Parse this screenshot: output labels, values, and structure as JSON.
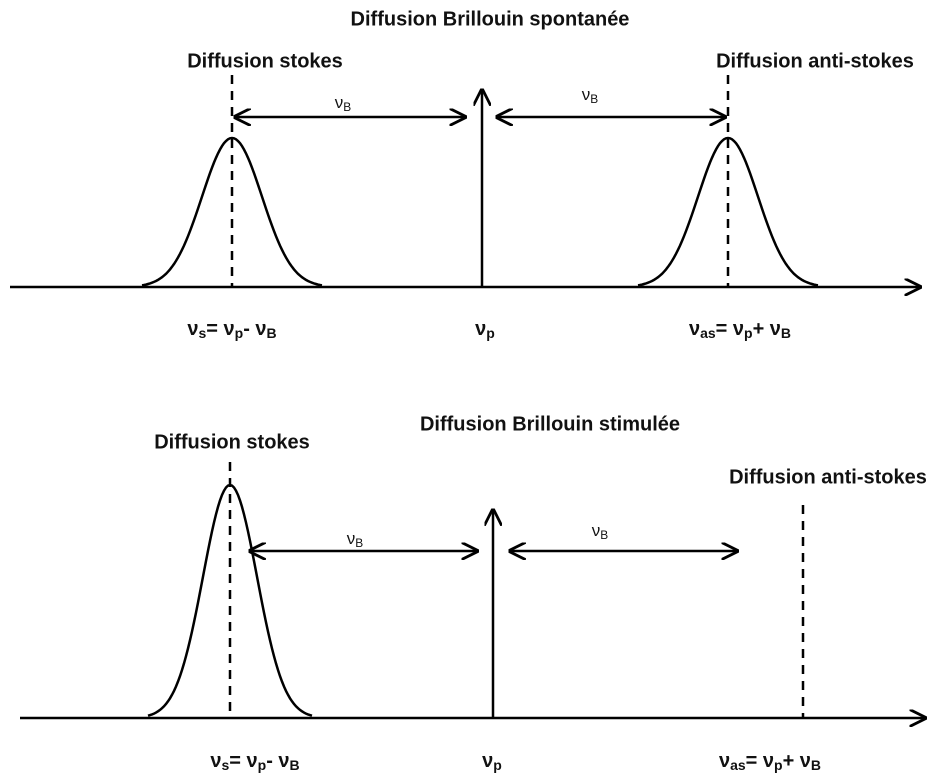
{
  "panels": [
    {
      "title": "Diffusion Brillouin spontanée",
      "stokes_label": "Diffusion stokes",
      "anti_stokes_label": "Diffusion anti-stokes",
      "shift_labels": [
        [
          {
            "text": "ν"
          },
          {
            "text": "B",
            "sub": true
          }
        ],
        [
          {
            "text": "ν"
          },
          {
            "text": "B",
            "sub": true
          }
        ]
      ],
      "axis_labels": [
        [
          {
            "text": "ν"
          },
          {
            "text": "s",
            "sub": true
          },
          {
            "text": "= ν"
          },
          {
            "text": "p",
            "sub": true
          },
          {
            "text": "- ν"
          },
          {
            "text": "B",
            "sub": true
          }
        ],
        [
          {
            "text": "ν"
          },
          {
            "text": "p",
            "sub": true
          }
        ],
        [
          {
            "text": "ν"
          },
          {
            "text": "as",
            "sub": true
          },
          {
            "text": "= ν"
          },
          {
            "text": "p",
            "sub": true
          },
          {
            "text": "+ ν"
          },
          {
            "text": "B",
            "sub": true
          }
        ]
      ]
    },
    {
      "title": "Diffusion Brillouin stimulée",
      "stokes_label": "Diffusion stokes",
      "anti_stokes_label": "Diffusion anti-stokes",
      "shift_labels": [
        [
          {
            "text": "ν"
          },
          {
            "text": "B",
            "sub": true
          }
        ],
        [
          {
            "text": "ν"
          },
          {
            "text": "B",
            "sub": true
          }
        ]
      ],
      "axis_labels": [
        [
          {
            "text": "ν"
          },
          {
            "text": "s",
            "sub": true
          },
          {
            "text": "= ν"
          },
          {
            "text": "p",
            "sub": true
          },
          {
            "text": "- ν"
          },
          {
            "text": "B",
            "sub": true
          }
        ],
        [
          {
            "text": "ν"
          },
          {
            "text": "p",
            "sub": true
          }
        ],
        [
          {
            "text": "ν"
          },
          {
            "text": "as",
            "sub": true
          },
          {
            "text": "= ν"
          },
          {
            "text": "p",
            "sub": true
          },
          {
            "text": "+ ν"
          },
          {
            "text": "B",
            "sub": true
          }
        ]
      ]
    }
  ]
}
